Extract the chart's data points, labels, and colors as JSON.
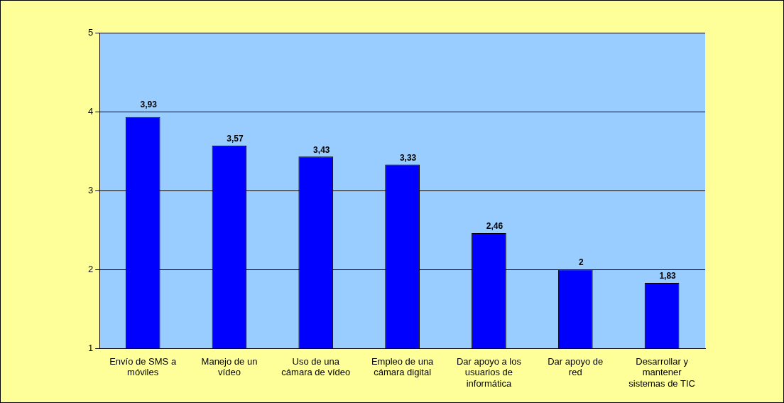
{
  "chart_data": {
    "type": "bar",
    "categories": [
      "Envío de SMS a móviles",
      "Manejo de un vídeo",
      "Uso de una cámara de vídeo",
      "Empleo de una cámara digital",
      "Dar apoyo a los usuarios de informática",
      "Dar apoyo de red",
      "Desarrollar y mantener sistemas de TIC"
    ],
    "values": [
      3.93,
      3.57,
      3.43,
      3.33,
      2.46,
      2,
      1.83
    ],
    "color": "#0000ff",
    "value_labels": [
      "3,93",
      "3,57",
      "3,43",
      "3,33",
      "2,46",
      "2",
      "1,83"
    ],
    "ylim": [
      1,
      5
    ],
    "yticks": [
      1,
      2,
      3,
      4,
      5
    ],
    "grid": "y",
    "legend": false
  }
}
